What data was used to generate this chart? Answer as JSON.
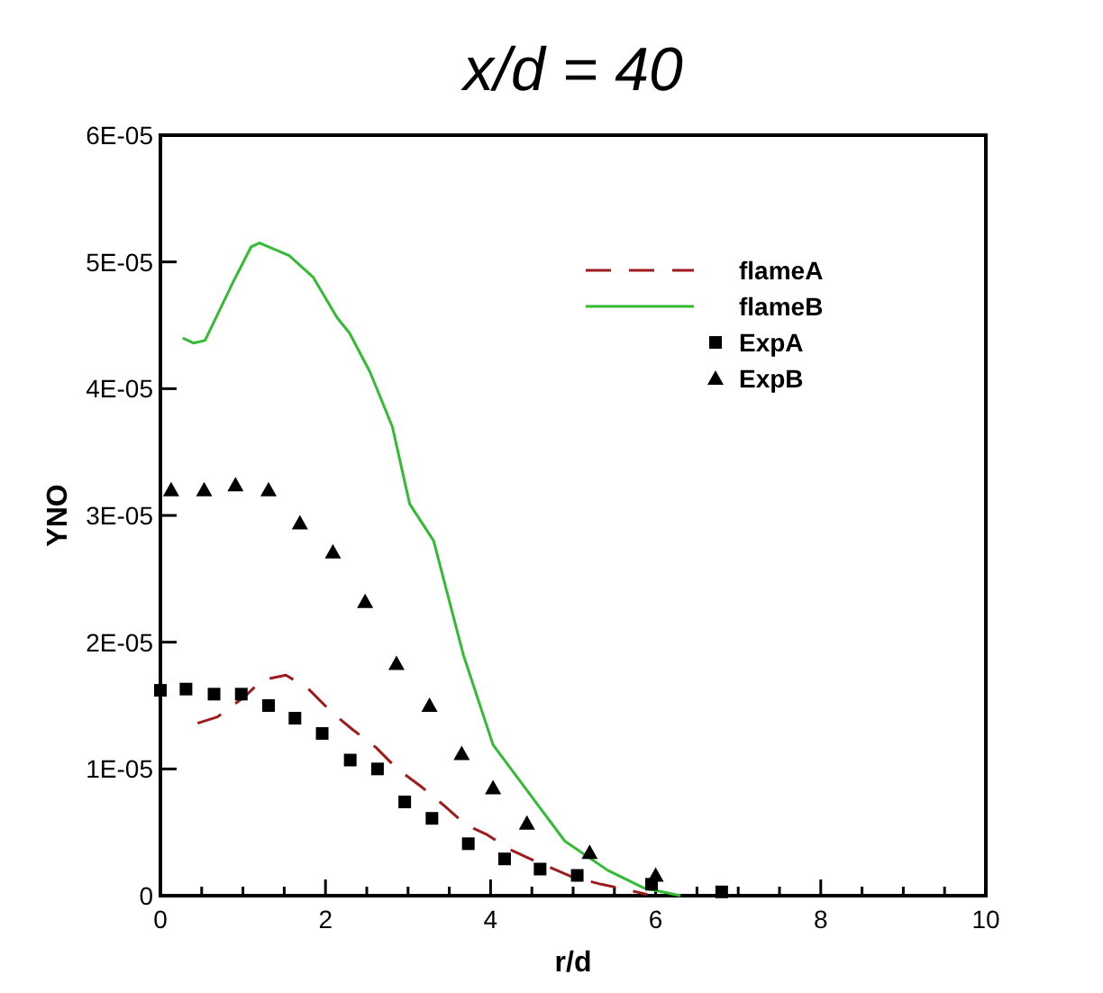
{
  "chart_data": {
    "type": "line",
    "title": "x/d = 40",
    "xlabel": "r/d",
    "ylabel": "YNO",
    "xlim": [
      0,
      10
    ],
    "xticks": [
      0,
      {
        "value": 0.5,
        "label": null
      },
      {
        "value": 1,
        "label": null
      },
      {
        "value": 1.5,
        "label": null
      },
      2,
      {
        "value": 2.5,
        "label": null
      },
      {
        "value": 3,
        "label": null
      },
      {
        "value": 3.5,
        "label": null
      },
      4,
      {
        "value": 4.5,
        "label": null
      },
      {
        "value": 5,
        "label": null
      },
      {
        "value": 5.5,
        "label": null
      },
      6,
      {
        "value": 6.5,
        "label": null
      },
      {
        "value": 7,
        "label": null
      },
      {
        "value": 7.5,
        "label": null
      },
      8,
      {
        "value": 8.5,
        "label": null
      },
      {
        "value": 9,
        "label": null
      },
      {
        "value": 9.5,
        "label": null
      },
      10
    ],
    "ylim": [
      0,
      6e-05
    ],
    "yticks": [
      {
        "value": 0,
        "label": "0"
      },
      {
        "value": 1e-05,
        "label": "1E-05"
      },
      {
        "value": 2e-05,
        "label": "2E-05"
      },
      {
        "value": 3e-05,
        "label": "3E-05"
      },
      {
        "value": 4e-05,
        "label": "4E-05"
      },
      {
        "value": 5e-05,
        "label": "5E-05"
      },
      {
        "value": 6e-05,
        "label": "6E-05"
      }
    ],
    "grid": false,
    "legend": "top right",
    "series": [
      {
        "name": "flameA",
        "color": "#a01c1c",
        "line_style": "dashed",
        "marker": "none",
        "x": [
          0.45,
          0.69,
          1.02,
          1.23,
          1.52,
          1.78,
          2.07,
          2.33,
          2.61,
          2.87,
          3.16,
          3.42,
          3.7,
          3.96,
          4.25,
          4.55,
          4.98,
          5.34,
          5.56,
          5.9
        ],
        "values": [
          1.36e-05,
          1.41e-05,
          1.57e-05,
          1.7e-05,
          1.74e-05,
          1.64e-05,
          1.45e-05,
          1.31e-05,
          1.17e-05,
          1e-05,
          8.6e-06,
          7.2e-06,
          5.6e-06,
          4.8e-06,
          3.6e-06,
          2.7e-06,
          1.5e-06,
          9e-07,
          6e-07,
          1e-07
        ]
      },
      {
        "name": "flameB",
        "color": "#33bb33",
        "line_style": "solid",
        "marker": "none",
        "x": [
          0.27,
          0.4,
          0.54,
          0.88,
          1.1,
          1.2,
          1.56,
          1.85,
          2.14,
          2.29,
          2.54,
          2.81,
          3.02,
          3.31,
          3.67,
          4.03,
          4.51,
          4.9,
          5.42,
          5.86,
          6.3
        ],
        "values": [
          4.4e-05,
          4.36e-05,
          4.38e-05,
          4.84e-05,
          5.12e-05,
          5.15e-05,
          5.05e-05,
          4.88e-05,
          4.56e-05,
          4.44e-05,
          4.13e-05,
          3.7e-05,
          3.09e-05,
          2.8e-05,
          1.9e-05,
          1.19e-05,
          7.7e-06,
          4.3e-06,
          2e-06,
          6e-07,
          0
        ]
      },
      {
        "name": "ExpA",
        "type": "scatter",
        "color": "#000000",
        "marker": "square",
        "x": [
          0,
          0.31,
          0.65,
          0.98,
          1.31,
          1.63,
          1.96,
          2.3,
          2.63,
          2.96,
          3.29,
          3.73,
          4.17,
          4.6,
          5.05,
          5.95,
          6.8
        ],
        "values": [
          1.62e-05,
          1.63e-05,
          1.59e-05,
          1.59e-05,
          1.5e-05,
          1.4e-05,
          1.28e-05,
          1.07e-05,
          1e-05,
          7.4e-06,
          6.1e-06,
          4.1e-06,
          2.9e-06,
          2.1e-06,
          1.6e-06,
          9e-07,
          3e-07
        ]
      },
      {
        "name": "ExpB",
        "type": "scatter",
        "color": "#000000",
        "marker": "triangle",
        "x": [
          0.13,
          0.53,
          0.91,
          1.31,
          1.69,
          2.09,
          2.48,
          2.86,
          3.26,
          3.65,
          4.03,
          4.44,
          5.2,
          6.0
        ],
        "values": [
          3.2e-05,
          3.2e-05,
          3.24e-05,
          3.2e-05,
          2.94e-05,
          2.71e-05,
          2.32e-05,
          1.83e-05,
          1.5e-05,
          1.12e-05,
          8.5e-06,
          5.7e-06,
          3.4e-06,
          1.6e-06
        ]
      }
    ]
  }
}
